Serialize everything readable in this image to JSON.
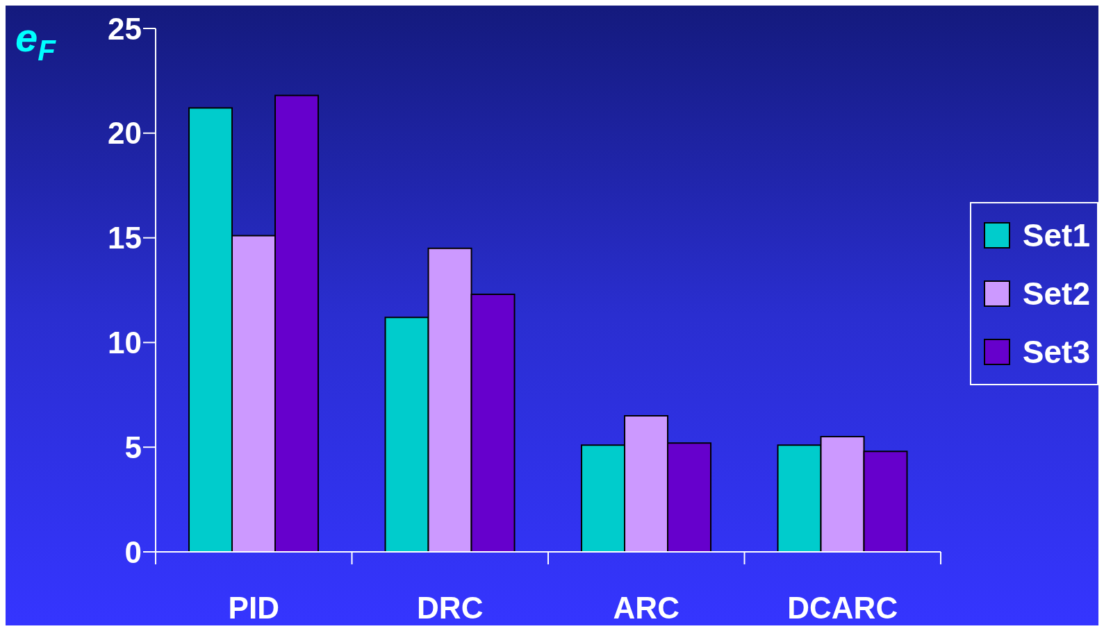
{
  "chart_data": {
    "type": "bar",
    "ylabel": "e$_{F}$",
    "categories": [
      "PID",
      "DRC",
      "ARC",
      "DCARC"
    ],
    "series": [
      {
        "name": "Set1",
        "color": "#00cccc",
        "values": [
          21.2,
          11.2,
          5.1,
          5.1
        ]
      },
      {
        "name": "Set2",
        "color": "#cc99ff",
        "values": [
          15.1,
          14.5,
          6.5,
          5.5
        ]
      },
      {
        "name": "Set3",
        "color": "#6600cc",
        "values": [
          21.8,
          12.3,
          5.2,
          4.8
        ]
      }
    ],
    "ylim": [
      0,
      25
    ],
    "yticks": [
      0,
      5,
      10,
      15,
      20,
      25
    ],
    "grid": false,
    "legend": "right"
  }
}
